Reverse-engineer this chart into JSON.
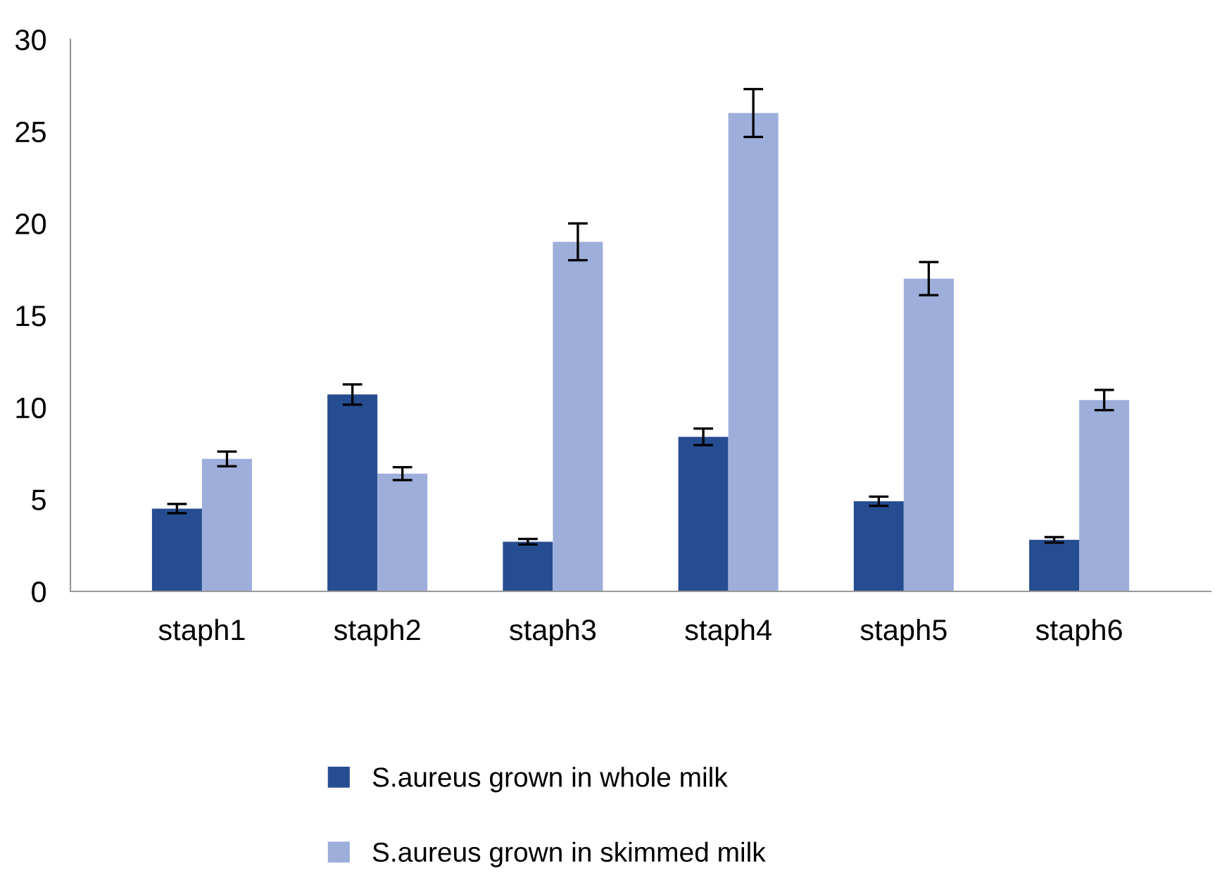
{
  "chart_data": {
    "type": "bar",
    "categories": [
      "staph1",
      "staph2",
      "staph3",
      "staph4",
      "staph5",
      "staph6"
    ],
    "series": [
      {
        "name": "S.aureus grown in whole milk",
        "color": "#264d91",
        "values": [
          4.5,
          10.7,
          2.7,
          8.4,
          4.9,
          2.8
        ],
        "errors": [
          0.25,
          0.55,
          0.15,
          0.45,
          0.25,
          0.15
        ]
      },
      {
        "name": "S.aureus grown in skimmed milk",
        "color": "#9daedb",
        "values": [
          7.2,
          6.4,
          19.0,
          26.0,
          17.0,
          10.4
        ],
        "errors": [
          0.4,
          0.35,
          1.0,
          1.3,
          0.9,
          0.55
        ]
      }
    ],
    "ylim": [
      0,
      30
    ],
    "yticks": [
      0,
      5,
      10,
      15,
      20,
      25,
      30
    ],
    "grid": false,
    "legend": "bottom"
  }
}
